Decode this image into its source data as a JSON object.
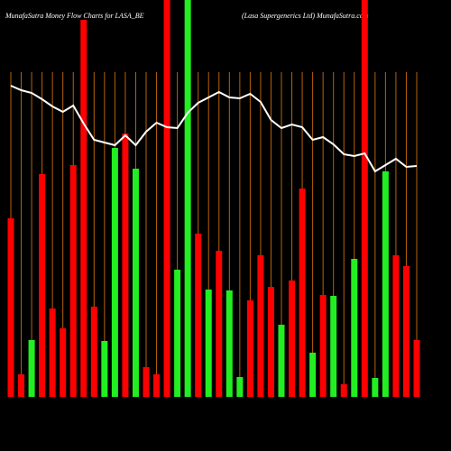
{
  "chart_data": {
    "type": "bar",
    "title": "MunafaSutra  Money Flow  Charts for LASA_BE",
    "subtitle": "(Lasa  Supergenerics Ltd) MunafaSutra.com",
    "categories": [
      null,
      null,
      null,
      null,
      null,
      null,
      null,
      null,
      null,
      null,
      null,
      null,
      null,
      null,
      null,
      null,
      null,
      null,
      null,
      null,
      null,
      null,
      null,
      null,
      null,
      null,
      null,
      null,
      null,
      null,
      null,
      null,
      null,
      null,
      null,
      null,
      null,
      null,
      null,
      null
    ],
    "ylim": [
      0,
      440
    ],
    "grid": true,
    "grid_color": "#b8620a",
    "background": "#000000",
    "bars": {
      "values": [
        198,
        25,
        63,
        247,
        98,
        76,
        257,
        418,
        100,
        62,
        276,
        292,
        253,
        33,
        25,
        440,
        141,
        440,
        181,
        119,
        162,
        118,
        22,
        107,
        157,
        122,
        80,
        129,
        231,
        49,
        113,
        112,
        14,
        153,
        440,
        21,
        250,
        157,
        145,
        63
      ],
      "colors": [
        "#ff0000",
        "#ff0000",
        "#22ee22",
        "#ff0000",
        "#ff0000",
        "#ff0000",
        "#ff0000",
        "#ff0000",
        "#ff0000",
        "#22ee22",
        "#22ee22",
        "#ff0000",
        "#22ee22",
        "#ff0000",
        "#ff0000",
        "#ff0000",
        "#22ee22",
        "#22ee22",
        "#ff0000",
        "#22ee22",
        "#ff0000",
        "#22ee22",
        "#22ee22",
        "#ff0000",
        "#ff0000",
        "#ff0000",
        "#22ee22",
        "#ff0000",
        "#ff0000",
        "#22ee22",
        "#ff0000",
        "#22ee22",
        "#ff0000",
        "#22ee22",
        "#ff0000",
        "#22ee22",
        "#22ee22",
        "#ff0000",
        "#ff0000",
        "#ff0000"
      ]
    },
    "line": {
      "color": "#ffffff",
      "values": [
        345,
        340,
        337,
        330,
        322,
        316,
        323,
        303,
        285,
        282,
        279,
        290,
        279,
        294,
        304,
        299,
        298,
        315,
        326,
        332,
        338,
        332,
        331,
        336,
        327,
        307,
        298,
        302,
        299,
        285,
        288,
        280,
        269,
        267,
        270,
        250,
        257,
        264,
        255,
        256
      ]
    }
  }
}
